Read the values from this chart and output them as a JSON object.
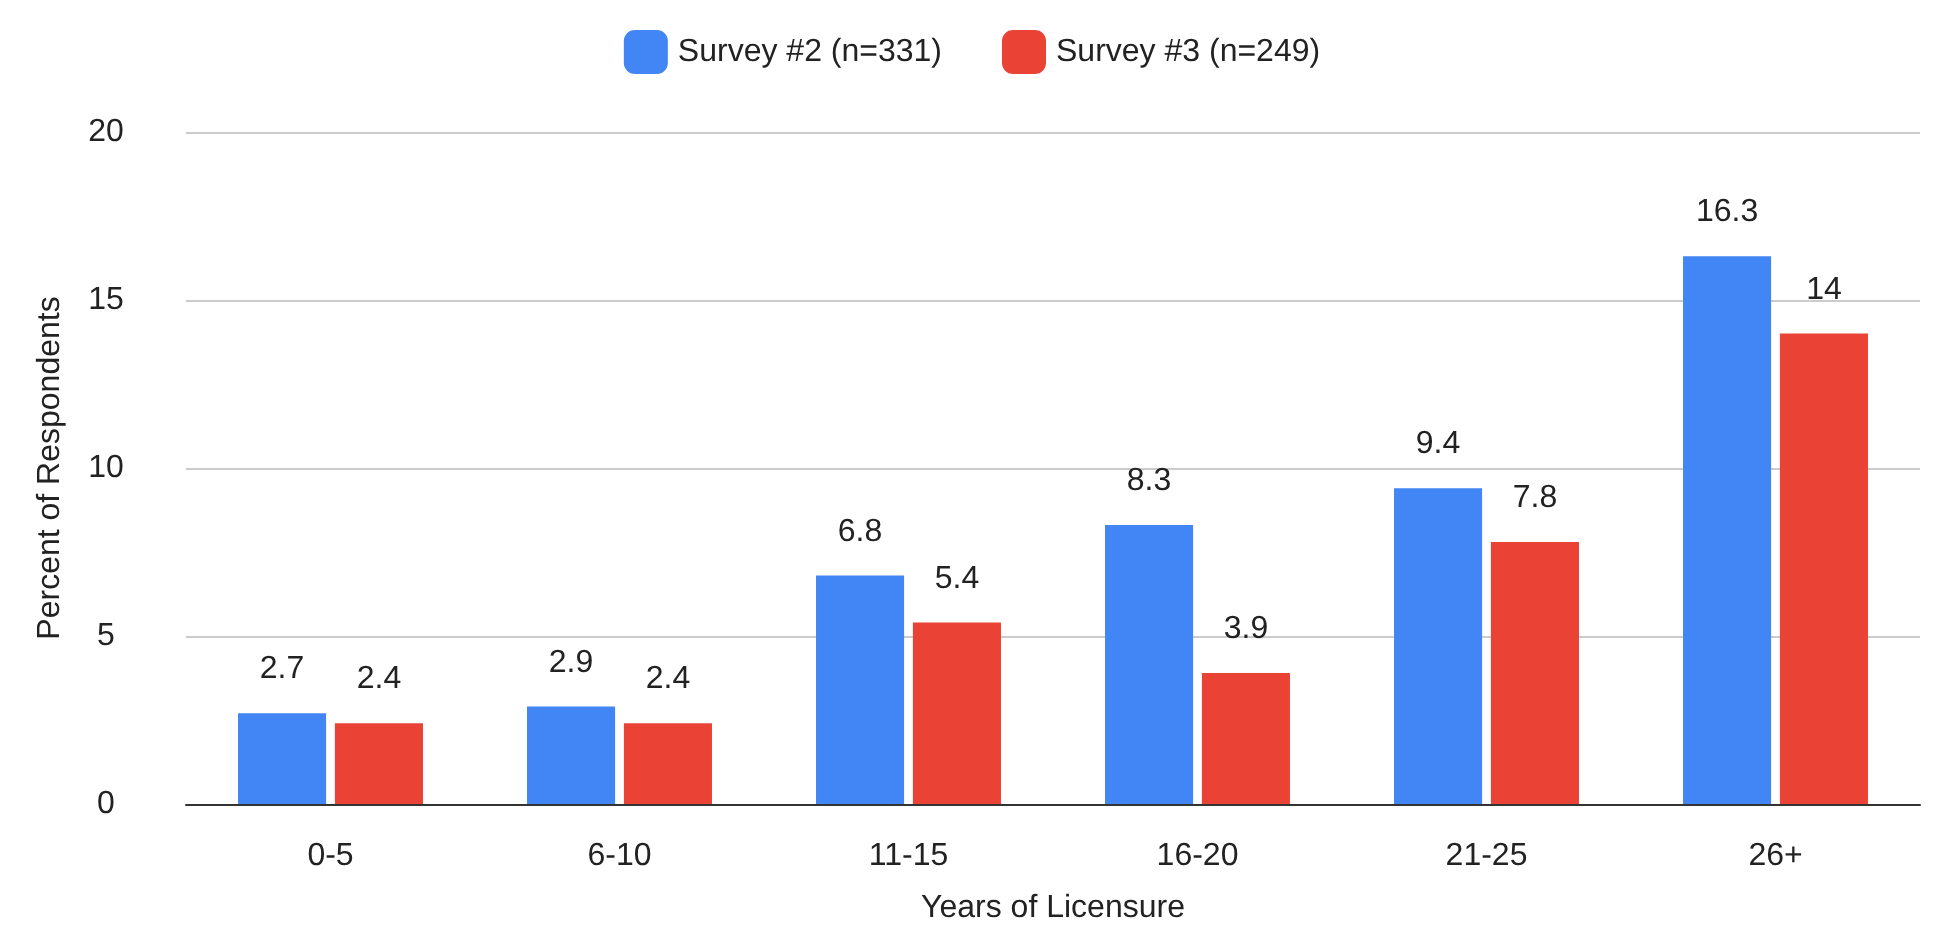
{
  "chart_data": {
    "type": "bar",
    "xlabel": "Years of Licensure",
    "ylabel": "Percent of Respondents",
    "categories": [
      "0-5",
      "6-10",
      "11-15",
      "16-20",
      "21-25",
      "26+"
    ],
    "series": [
      {
        "name": "Survey #2 (n=331)",
        "color": "#4285f4",
        "values": [
          2.7,
          2.9,
          6.8,
          8.3,
          9.4,
          16.3
        ]
      },
      {
        "name": "Survey #3 (n=249)",
        "color": "#ea4335",
        "values": [
          2.4,
          2.4,
          5.4,
          3.9,
          7.8,
          14
        ]
      }
    ],
    "ylim": [
      0,
      20
    ],
    "yticks": [
      0,
      5,
      10,
      15,
      20
    ],
    "grid": "y",
    "legend": "top",
    "data_labels": true
  }
}
